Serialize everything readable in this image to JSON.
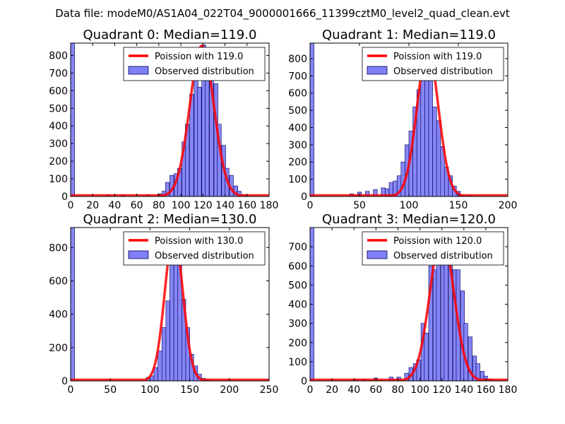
{
  "suptitle": "Data file: modeM0/AS1A04_022T04_9000001666_11399cztM0_level2_quad_clean.evt",
  "colors": {
    "line": "#ff0000",
    "bar_fill": "#7f7ff7",
    "bar_edge": "#00005a"
  },
  "chart_data": [
    {
      "type": "bar",
      "title": "Quadrant 0: Median=119.0",
      "legend": [
        "Poission with 119.0",
        "Observed distribution"
      ],
      "legend_loc": "top-right",
      "xlim": [
        0,
        180
      ],
      "ylim": [
        0,
        870
      ],
      "xticks": [
        0,
        20,
        40,
        60,
        80,
        100,
        120,
        140,
        160,
        180
      ],
      "yticks": [
        0,
        100,
        200,
        300,
        400,
        500,
        600,
        700,
        800
      ],
      "mean": 119.0,
      "peak": 855,
      "bin_width": 3.6,
      "bins_x": [
        0,
        32,
        46,
        68,
        79,
        83,
        86,
        90,
        94,
        97,
        101,
        104,
        108,
        112,
        115,
        119,
        122,
        126,
        130,
        133,
        137,
        140,
        144,
        148,
        151,
        155,
        158
      ],
      "bins_y": [
        870,
        10,
        10,
        10,
        15,
        30,
        80,
        120,
        130,
        160,
        310,
        410,
        580,
        680,
        620,
        860,
        770,
        710,
        640,
        410,
        290,
        160,
        120,
        60,
        30,
        10,
        5
      ]
    },
    {
      "type": "bar",
      "title": "Quadrant 1: Median=119.0",
      "legend": [
        "Poission with 119.0",
        "Observed distribution"
      ],
      "legend_loc": "top-right",
      "xlim": [
        0,
        200
      ],
      "ylim": [
        0,
        890
      ],
      "xticks": [
        0,
        50,
        100,
        150,
        200
      ],
      "yticks": [
        0,
        100,
        200,
        300,
        400,
        500,
        600,
        700,
        800
      ],
      "mean": 119.0,
      "peak": 850,
      "bin_width": 4.0,
      "bins_x": [
        0,
        40,
        48,
        56,
        64,
        72,
        76,
        80,
        84,
        88,
        92,
        96,
        100,
        104,
        108,
        112,
        116,
        120,
        124,
        128,
        132,
        136,
        140,
        144,
        148,
        152,
        160
      ],
      "bins_y": [
        890,
        15,
        25,
        30,
        40,
        50,
        45,
        80,
        90,
        120,
        200,
        300,
        380,
        520,
        620,
        800,
        860,
        690,
        520,
        440,
        290,
        170,
        120,
        60,
        30,
        10,
        5
      ]
    },
    {
      "type": "bar",
      "title": "Quadrant 2: Median=130.0",
      "legend": [
        "Poission with 130.0",
        "Observed distribution"
      ],
      "legend_loc": "top-right",
      "xlim": [
        0,
        250
      ],
      "ylim": [
        0,
        920
      ],
      "xticks": [
        0,
        50,
        100,
        150,
        200,
        250
      ],
      "yticks": [
        0,
        200,
        400,
        600,
        800
      ],
      "mean": 130.0,
      "peak": 880,
      "bin_width": 5.0,
      "bins_x": [
        0,
        95,
        100,
        105,
        110,
        115,
        120,
        125,
        130,
        135,
        140,
        145,
        150,
        155,
        160,
        165,
        170
      ],
      "bins_y": [
        920,
        20,
        30,
        80,
        180,
        320,
        480,
        700,
        860,
        720,
        490,
        320,
        160,
        90,
        40,
        15,
        5
      ]
    },
    {
      "type": "bar",
      "title": "Quadrant 3: Median=120.0",
      "legend": [
        "Poission with 120.0",
        "Observed distribution"
      ],
      "legend_loc": "top-right",
      "xlim": [
        0,
        180
      ],
      "ylim": [
        0,
        800
      ],
      "xticks": [
        0,
        20,
        40,
        60,
        80,
        100,
        120,
        140,
        160,
        180
      ],
      "yticks": [
        0,
        100,
        200,
        300,
        400,
        500,
        600,
        700
      ],
      "mean": 120.0,
      "peak": 760,
      "bin_width": 3.6,
      "bins_x": [
        0,
        40,
        47,
        58,
        72,
        79,
        86,
        90,
        94,
        97,
        101,
        104,
        108,
        112,
        115,
        119,
        122,
        126,
        130,
        133,
        137,
        140,
        144,
        148,
        151,
        155,
        158,
        162
      ],
      "bins_y": [
        800,
        10,
        10,
        15,
        20,
        20,
        40,
        70,
        90,
        110,
        300,
        250,
        600,
        580,
        650,
        760,
        730,
        640,
        580,
        580,
        470,
        300,
        230,
        130,
        90,
        50,
        25,
        10
      ]
    }
  ]
}
